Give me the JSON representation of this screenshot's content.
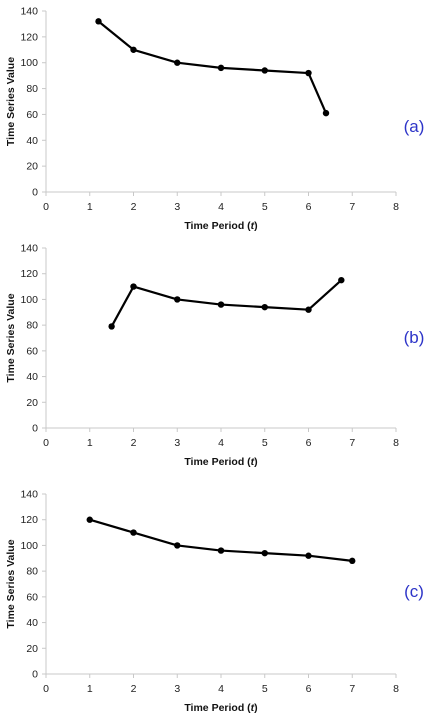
{
  "chart_data": [
    {
      "type": "line",
      "panel_label": "(a)",
      "xlabel": "Time Period (t)",
      "ylabel": "Time Series Value",
      "xlim": [
        0,
        8
      ],
      "ylim": [
        0,
        140
      ],
      "x_ticks": [
        "0",
        "1",
        "2",
        "3",
        "4",
        "5",
        "6",
        "7",
        "8"
      ],
      "y_ticks": [
        "0",
        "20",
        "40",
        "60",
        "80",
        "100",
        "120",
        "140"
      ],
      "grid": false,
      "series": [
        {
          "x": [
            1.2,
            2,
            3,
            4,
            5,
            6,
            6.4
          ],
          "y": [
            132,
            110,
            100,
            96,
            94,
            92,
            61
          ]
        }
      ]
    },
    {
      "type": "line",
      "panel_label": "(b)",
      "xlabel": "Time Period (t)",
      "ylabel": "Time Series Value",
      "xlim": [
        0,
        8
      ],
      "ylim": [
        0,
        140
      ],
      "x_ticks": [
        "0",
        "1",
        "2",
        "3",
        "4",
        "5",
        "6",
        "7",
        "8"
      ],
      "y_ticks": [
        "0",
        "20",
        "40",
        "60",
        "80",
        "100",
        "120",
        "140"
      ],
      "grid": false,
      "series": [
        {
          "x": [
            1.5,
            2,
            3,
            4,
            5,
            6,
            6.75
          ],
          "y": [
            79,
            110,
            100,
            96,
            94,
            92,
            115
          ]
        }
      ]
    },
    {
      "type": "line",
      "panel_label": "(c)",
      "xlabel": "Time Period (t)",
      "ylabel": "Time Series Value",
      "xlim": [
        0,
        8
      ],
      "ylim": [
        0,
        140
      ],
      "x_ticks": [
        "0",
        "1",
        "2",
        "3",
        "4",
        "5",
        "6",
        "7",
        "8"
      ],
      "y_ticks": [
        "0",
        "20",
        "40",
        "60",
        "80",
        "100",
        "120",
        "140"
      ],
      "grid": false,
      "series": [
        {
          "x": [
            1,
            2,
            3,
            4,
            5,
            6,
            7
          ],
          "y": [
            120,
            110,
            100,
            96,
            94,
            92,
            88
          ]
        }
      ]
    }
  ],
  "colors": {
    "line": "#000000",
    "axis": "#c8c8c8",
    "panel_label": "#2d34c8"
  }
}
